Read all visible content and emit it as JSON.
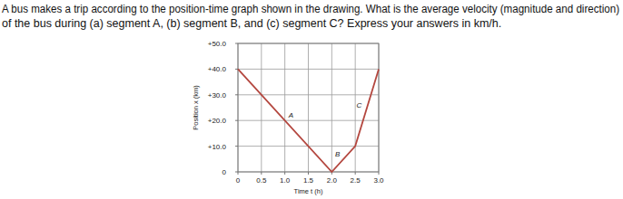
{
  "chart_data": {
    "type": "line",
    "title": "A bus makes a trip according to the position-time graph shown in the drawing. What is the average velocity (magnitude and direction)",
    "subtitle": "of the bus during (a) segment A, (b) segment B, and (c) segment C? Express your answers in km/h.",
    "x_label": "Time t (h)",
    "y_label": "Position x (km)",
    "x": [
      0,
      2.0,
      2.5,
      3.0
    ],
    "values": [
      40,
      0,
      10,
      40
    ],
    "segment_labels": [
      "A",
      "B",
      "C"
    ],
    "color": "#b4473f",
    "xlim": [
      0,
      3.0
    ],
    "ylim": [
      0,
      50
    ],
    "xticks": [
      0,
      0.5,
      {
        "value": 1,
        "label": "1.0"
      },
      1.5,
      {
        "value": 2,
        "label": "2.0"
      },
      2.5,
      {
        "value": 3,
        "label": "3.0"
      }
    ],
    "yticks": [
      {
        "value": 50,
        "label": "+50.0"
      },
      {
        "value": 40,
        "label": "+40.0"
      },
      {
        "value": 30,
        "label": "+30.0"
      },
      {
        "value": 20,
        "label": "+20.0"
      },
      {
        "value": 10,
        "label": "+10.0"
      },
      0
    ],
    "grid": true
  }
}
